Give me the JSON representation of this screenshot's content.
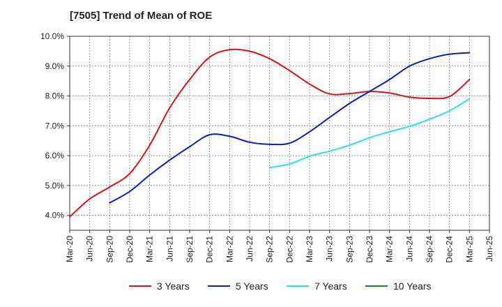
{
  "chart_data": {
    "type": "line",
    "title": "[7505]  Trend of Mean of ROE",
    "xlabel": "",
    "ylabel": "",
    "ylim": [
      3.5,
      10.0
    ],
    "yticks": [
      "4.0%",
      "5.0%",
      "6.0%",
      "7.0%",
      "8.0%",
      "9.0%",
      "10.0%"
    ],
    "xticks": [
      "Mar-20",
      "Jun-20",
      "Sep-20",
      "Dec-20",
      "Mar-21",
      "Jun-21",
      "Sep-21",
      "Dec-21",
      "Mar-22",
      "Jun-22",
      "Sep-22",
      "Dec-22",
      "Mar-23",
      "Jun-23",
      "Sep-23",
      "Dec-23",
      "Mar-24",
      "Jun-24",
      "Sep-24",
      "Dec-24",
      "Mar-25",
      "Jun-25"
    ],
    "grid": true,
    "legend_position": "bottom",
    "series": [
      {
        "name": "3 Years",
        "color": "#dd1111",
        "values": [
          [
            "Mar-20",
            3.95
          ],
          [
            "Jun-20",
            4.55
          ],
          [
            "Sep-20",
            4.95
          ],
          [
            "Dec-20",
            5.4
          ],
          [
            "Mar-21",
            6.35
          ],
          [
            "Jun-21",
            7.6
          ],
          [
            "Sep-21",
            8.55
          ],
          [
            "Dec-21",
            9.3
          ],
          [
            "Mar-22",
            9.55
          ],
          [
            "Jun-22",
            9.5
          ],
          [
            "Sep-22",
            9.25
          ],
          [
            "Dec-22",
            8.85
          ],
          [
            "Mar-23",
            8.4
          ],
          [
            "Jun-23",
            8.07
          ],
          [
            "Sep-23",
            8.08
          ],
          [
            "Dec-23",
            8.15
          ],
          [
            "Mar-24",
            8.1
          ],
          [
            "Jun-24",
            7.96
          ],
          [
            "Sep-24",
            7.92
          ],
          [
            "Dec-24",
            7.98
          ],
          [
            "Mar-25",
            8.55
          ]
        ]
      },
      {
        "name": "5 Years",
        "color": "#0b1ccc",
        "values": [
          [
            "Sep-20",
            4.42
          ],
          [
            "Dec-20",
            4.8
          ],
          [
            "Mar-21",
            5.35
          ],
          [
            "Jun-21",
            5.85
          ],
          [
            "Sep-21",
            6.3
          ],
          [
            "Dec-21",
            6.7
          ],
          [
            "Mar-22",
            6.65
          ],
          [
            "Jun-22",
            6.45
          ],
          [
            "Sep-22",
            6.38
          ],
          [
            "Dec-22",
            6.42
          ],
          [
            "Mar-23",
            6.8
          ],
          [
            "Jun-23",
            7.28
          ],
          [
            "Sep-23",
            7.75
          ],
          [
            "Dec-23",
            8.15
          ],
          [
            "Mar-24",
            8.55
          ],
          [
            "Jun-24",
            9.0
          ],
          [
            "Sep-24",
            9.25
          ],
          [
            "Dec-24",
            9.4
          ],
          [
            "Mar-25",
            9.45
          ]
        ]
      },
      {
        "name": "7 Years",
        "color": "#22e6e6",
        "values": [
          [
            "Sep-22",
            5.6
          ],
          [
            "Dec-22",
            5.72
          ],
          [
            "Mar-23",
            5.98
          ],
          [
            "Jun-23",
            6.15
          ],
          [
            "Sep-23",
            6.35
          ],
          [
            "Dec-23",
            6.6
          ],
          [
            "Mar-24",
            6.8
          ],
          [
            "Jun-24",
            6.98
          ],
          [
            "Sep-24",
            7.22
          ],
          [
            "Dec-24",
            7.5
          ],
          [
            "Mar-25",
            7.9
          ]
        ]
      },
      {
        "name": "10 Years",
        "color": "#1a8a1a",
        "values": []
      }
    ]
  }
}
